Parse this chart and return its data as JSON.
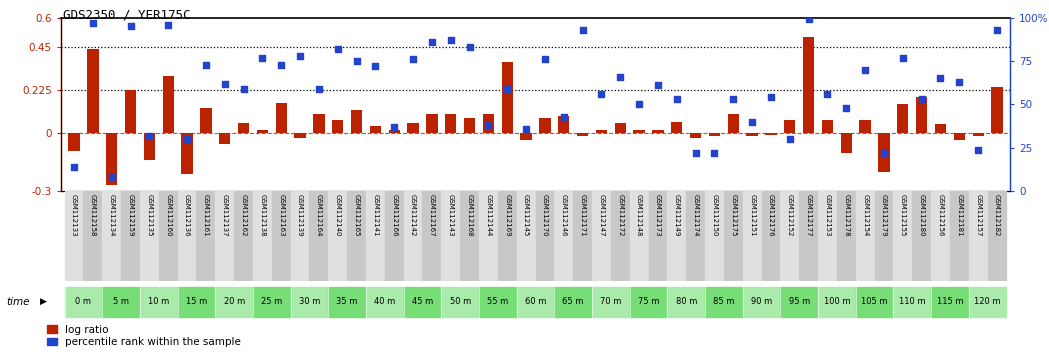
{
  "title": "GDS2350 / YER175C",
  "samples": [
    "GSM112133",
    "GSM112158",
    "GSM112134",
    "GSM112159",
    "GSM112135",
    "GSM112160",
    "GSM112136",
    "GSM112161",
    "GSM112137",
    "GSM112162",
    "GSM112138",
    "GSM112163",
    "GSM112139",
    "GSM112164",
    "GSM112140",
    "GSM112165",
    "GSM112141",
    "GSM112166",
    "GSM112142",
    "GSM112167",
    "GSM112143",
    "GSM112168",
    "GSM112144",
    "GSM112169",
    "GSM112145",
    "GSM112170",
    "GSM112146",
    "GSM112171",
    "GSM112147",
    "GSM112172",
    "GSM112148",
    "GSM112173",
    "GSM112149",
    "GSM112174",
    "GSM112150",
    "GSM112175",
    "GSM112151",
    "GSM112176",
    "GSM112152",
    "GSM112177",
    "GSM112153",
    "GSM112178",
    "GSM112154",
    "GSM112179",
    "GSM112155",
    "GSM112180",
    "GSM112156",
    "GSM112181",
    "GSM112157",
    "GSM112182"
  ],
  "time_labels": [
    "0 m",
    "5 m",
    "10 m",
    "15 m",
    "20 m",
    "25 m",
    "30 m",
    "35 m",
    "40 m",
    "45 m",
    "50 m",
    "55 m",
    "60 m",
    "65 m",
    "70 m",
    "75 m",
    "80 m",
    "85 m",
    "90 m",
    "95 m",
    "100 m",
    "105 m",
    "110 m",
    "115 m",
    "120 m"
  ],
  "time_positions": [
    0,
    2,
    4,
    6,
    8,
    10,
    12,
    14,
    16,
    18,
    20,
    22,
    24,
    26,
    28,
    30,
    32,
    34,
    36,
    38,
    40,
    42,
    44,
    46,
    48
  ],
  "log_ratio": [
    -0.09,
    0.44,
    -0.27,
    0.225,
    -0.14,
    0.3,
    -0.21,
    0.13,
    -0.055,
    0.055,
    0.015,
    0.155,
    -0.025,
    0.1,
    0.07,
    0.12,
    0.04,
    0.015,
    0.055,
    0.1,
    0.1,
    0.08,
    0.1,
    0.37,
    -0.035,
    0.08,
    0.09,
    -0.015,
    0.015,
    0.055,
    0.015,
    0.015,
    0.06,
    -0.025,
    -0.015,
    0.1,
    -0.015,
    -0.008,
    0.07,
    0.5,
    0.07,
    -0.1,
    0.07,
    -0.2,
    0.15,
    0.19,
    0.05,
    -0.035,
    -0.015,
    0.24
  ],
  "percentile": [
    14,
    97,
    8,
    95,
    32,
    96,
    30,
    73,
    62,
    59,
    77,
    73,
    78,
    59,
    82,
    75,
    72,
    37,
    76,
    86,
    87,
    83,
    38,
    59,
    36,
    76,
    43,
    93,
    56,
    66,
    50,
    61,
    53,
    22,
    22,
    53,
    40,
    54,
    30,
    99,
    56,
    48,
    70,
    22,
    77,
    53,
    65,
    63,
    24,
    93
  ],
  "bar_color": "#bb2200",
  "dot_color": "#2244cc",
  "bg_color": "#ffffff",
  "plot_bg": "#ffffff",
  "gsm_bg_light": "#e0e0e0",
  "gsm_bg_dark": "#c8c8c8",
  "green_bg_light": "#aaeaaa",
  "green_bg_dark": "#77dd77",
  "ylim_left": [
    -0.3,
    0.6
  ],
  "ylim_right": [
    0,
    100
  ],
  "yticks_left": [
    -0.3,
    0.0,
    0.225,
    0.45,
    0.6
  ],
  "yticks_right": [
    0,
    25,
    50,
    75,
    100
  ],
  "hlines": [
    0.225,
    0.45
  ],
  "legend_log": "log ratio",
  "legend_pct": "percentile rank within the sample"
}
